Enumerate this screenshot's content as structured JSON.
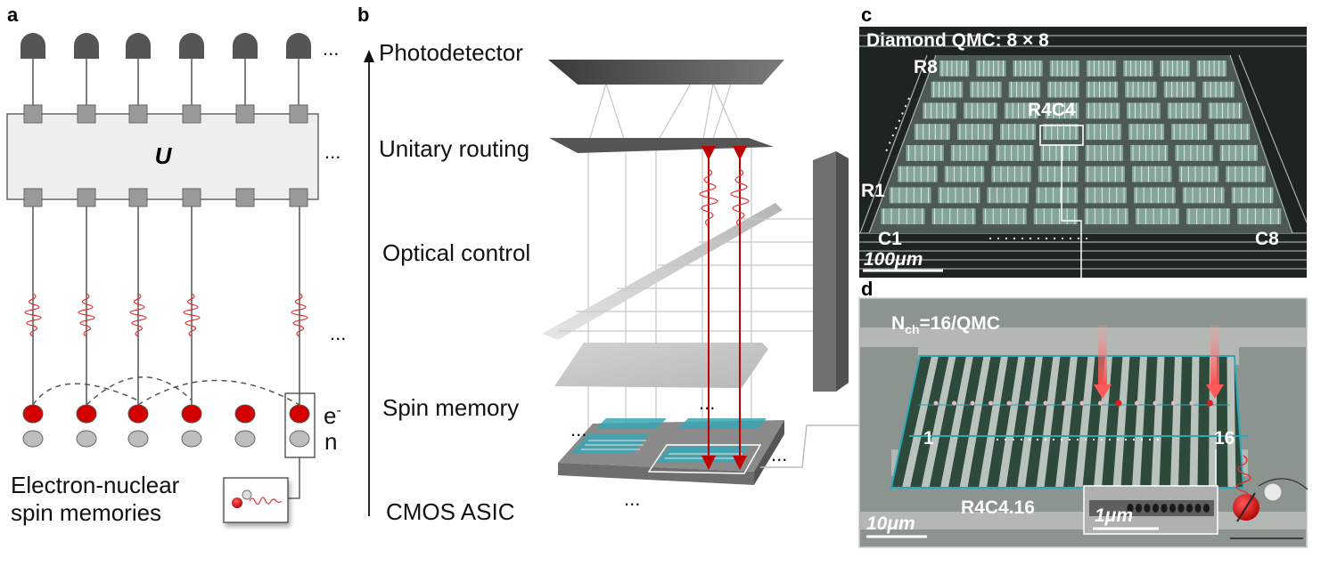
{
  "panels": {
    "a": "a",
    "b": "b",
    "c": "c",
    "d": "d"
  },
  "panel_a": {
    "unitary": "U",
    "ellipsis": "...",
    "electron": "e",
    "electron_sup": "-",
    "nuclear": "n",
    "memories_line1": "Electron-nuclear",
    "memories_line2": "spin memories"
  },
  "panel_b": {
    "layers": [
      "Photodetector",
      "Unitary routing",
      "Optical control",
      "Spin memory",
      "CMOS ASIC"
    ],
    "ellipsis": "..."
  },
  "panel_c": {
    "title": "Diamond QMC: 8 × 8",
    "row_top": "R8",
    "row_bottom": "R1",
    "col_left": "C1",
    "col_right": "C8",
    "highlight": "R4C4",
    "scale": "100μm"
  },
  "panel_d": {
    "nch_main": "N",
    "nch_sub": "ch",
    "nch_rest": "=16/QMC",
    "first": "1",
    "last": "16",
    "device": "R4C4.16",
    "scale": "10μm",
    "inset_scale": "1μm"
  },
  "colors": {
    "electron": "#d40000",
    "wave": "#e03030",
    "cyan": "#2aa7b8",
    "substrate": "#1f2a24"
  }
}
